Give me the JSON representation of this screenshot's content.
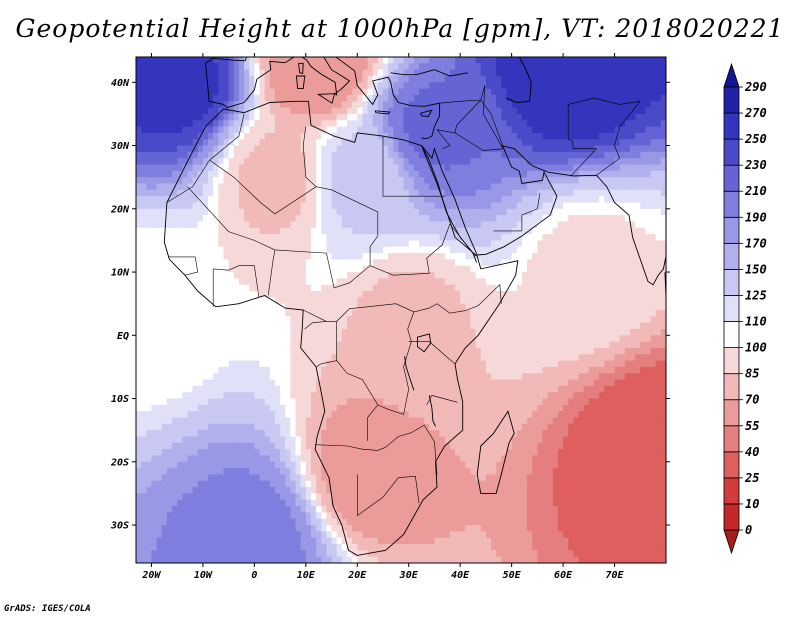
{
  "title": "Geopotential Height at 1000hPa [gpm], VT: 2018020221",
  "credit": "GrADS: IGES/COLA",
  "map": {
    "lon_range": [
      -23,
      80
    ],
    "lat_range": [
      -36,
      44
    ],
    "lon_ticks": [
      {
        "value": -20,
        "label": "20W"
      },
      {
        "value": -10,
        "label": "10W"
      },
      {
        "value": 0,
        "label": "0"
      },
      {
        "value": 10,
        "label": "10E"
      },
      {
        "value": 20,
        "label": "20E"
      },
      {
        "value": 30,
        "label": "30E"
      },
      {
        "value": 40,
        "label": "40E"
      },
      {
        "value": 50,
        "label": "50E"
      },
      {
        "value": 60,
        "label": "60E"
      },
      {
        "value": 70,
        "label": "70E"
      }
    ],
    "lat_ticks": [
      {
        "value": 40,
        "label": "40N"
      },
      {
        "value": 30,
        "label": "30N"
      },
      {
        "value": 20,
        "label": "20N"
      },
      {
        "value": 10,
        "label": "10N"
      },
      {
        "value": 0,
        "label": "EQ"
      },
      {
        "value": -10,
        "label": "10S"
      },
      {
        "value": -20,
        "label": "20S"
      },
      {
        "value": -30,
        "label": "30S"
      }
    ]
  },
  "colorbar": {
    "levels": [
      "0",
      "10",
      "25",
      "40",
      "55",
      "70",
      "85",
      "100",
      "110",
      "125",
      "150",
      "170",
      "190",
      "210",
      "230",
      "250",
      "270",
      "290"
    ],
    "colors": [
      "#a51c1c",
      "#c42828",
      "#d33c3c",
      "#df5f5f",
      "#e57e7e",
      "#ec9b9b",
      "#f2b9b9",
      "#f7d8d8",
      "#ffffff",
      "#e0e0f8",
      "#c8c8f2",
      "#b0b0ec",
      "#9898e6",
      "#7e7ede",
      "#6464d4",
      "#4a4ac8",
      "#3434bc",
      "#2222a8",
      "#141496"
    ]
  },
  "field_features": [
    {
      "lon": -15,
      "lat": 40,
      "value": 260
    },
    {
      "lon": 60,
      "lat": 42,
      "value": 270
    },
    {
      "lon": 35,
      "lat": 33,
      "value": 215
    },
    {
      "lon": 12,
      "lat": 42,
      "value": 55
    },
    {
      "lon": 30,
      "lat": 2,
      "value": 80
    },
    {
      "lon": 22,
      "lat": -22,
      "value": 60
    },
    {
      "lon": 77,
      "lat": -18,
      "value": 25
    },
    {
      "lon": 0,
      "lat": -32,
      "value": 200
    },
    {
      "lon": 65,
      "lat": 10,
      "value": 95
    },
    {
      "lon": -20,
      "lat": 5,
      "value": 100
    },
    {
      "lon": 5,
      "lat": 25,
      "value": 80
    },
    {
      "lon": 20,
      "lat": 25,
      "value": 130
    }
  ]
}
